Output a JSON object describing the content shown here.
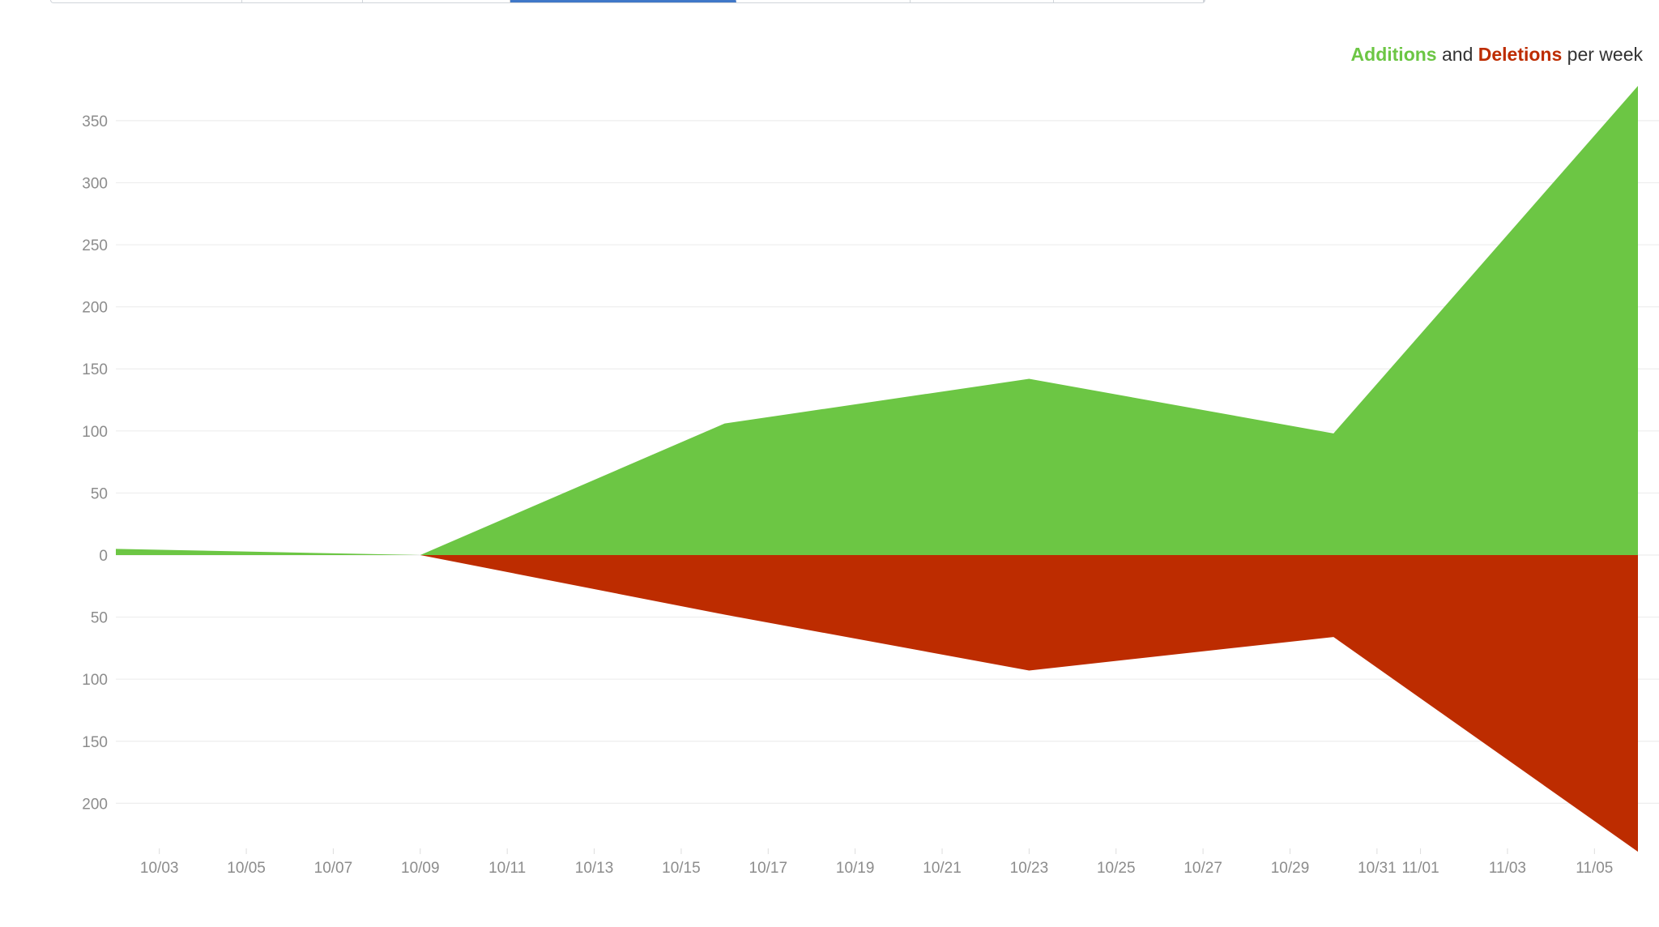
{
  "tabs": [
    "",
    "",
    "",
    "",
    "",
    "",
    "",
    ""
  ],
  "selected_tab": 3,
  "chart_data": {
    "type": "area",
    "title": "",
    "legend_parts": {
      "additions": "Additions",
      "and": " and ",
      "deletions": "Deletions",
      "suffix": " per week"
    },
    "legend_placement": "top-right",
    "x_dates": [
      "2016-10-02",
      "2016-10-09",
      "2016-10-16",
      "2016-10-23",
      "2016-10-30",
      "2016-11-06"
    ],
    "series": [
      {
        "name": "Additions",
        "color": "#6cc644",
        "values": [
          5,
          0,
          106,
          142,
          98,
          378
        ]
      },
      {
        "name": "Deletions",
        "color": "#bd2c00",
        "values": [
          0,
          0,
          48,
          93,
          66,
          239
        ]
      }
    ],
    "x_tick_labels": [
      "10/03",
      "10/05",
      "10/07",
      "10/09",
      "10/11",
      "10/13",
      "10/15",
      "10/17",
      "10/19",
      "10/21",
      "10/23",
      "10/25",
      "10/27",
      "10/29",
      "10/31",
      "11/01",
      "11/03",
      "11/05"
    ],
    "y_tick_labels_above": [
      "350",
      "300",
      "250",
      "200",
      "150",
      "100",
      "50",
      "0"
    ],
    "y_tick_labels_below": [
      "50",
      "100",
      "150",
      "200"
    ],
    "ylim": [
      -239,
      378
    ],
    "grid": true
  }
}
